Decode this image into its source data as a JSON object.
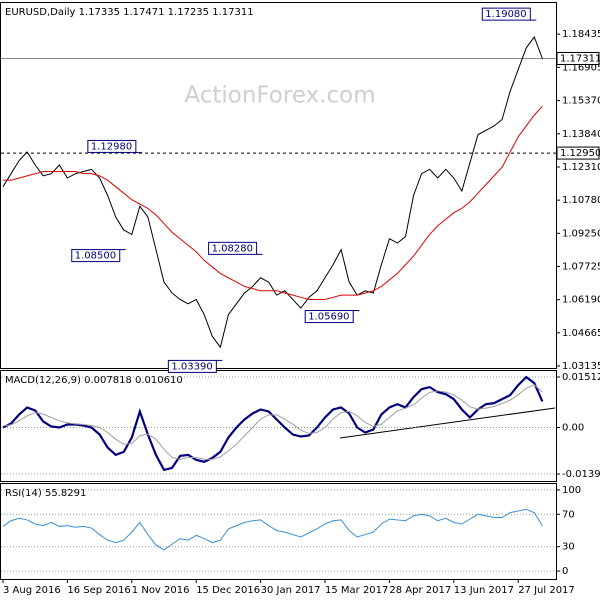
{
  "chart_data": [
    {
      "type": "line",
      "title": "EURUSD,Daily 1.17335 1.17471 1.17235 1.17311",
      "watermark": "ActionForex.com",
      "categories": [
        "3 Aug 2016",
        null,
        null,
        null,
        null,
        null,
        null,
        null,
        "16 Sep 2016",
        null,
        null,
        null,
        null,
        null,
        null,
        null,
        "1 Nov 2016",
        null,
        null,
        null,
        null,
        null,
        null,
        null,
        "15 Dec 2016",
        null,
        null,
        null,
        null,
        null,
        null,
        null,
        "30 Jan 2017",
        null,
        null,
        null,
        null,
        null,
        null,
        null,
        "15 Mar 2017",
        null,
        null,
        null,
        null,
        null,
        null,
        null,
        "28 Apr 2017",
        null,
        null,
        null,
        null,
        null,
        null,
        null,
        "13 Jun 2017",
        null,
        null,
        null,
        null,
        null,
        null,
        null,
        "27 Jul 2017",
        null,
        null,
        null
      ],
      "series": [
        {
          "color": "#000000",
          "values": [
            1.114,
            1.12,
            1.126,
            1.13,
            1.124,
            1.119,
            1.12,
            1.124,
            1.118,
            1.12,
            1.121,
            1.122,
            1.118,
            1.11,
            1.1,
            1.094,
            1.092,
            1.105,
            1.1,
            1.085,
            1.07,
            1.065,
            1.062,
            1.06,
            1.062,
            1.055,
            1.045,
            1.04,
            1.055,
            1.06,
            1.065,
            1.068,
            1.072,
            1.07,
            1.064,
            1.066,
            1.062,
            1.058,
            1.063,
            1.066,
            1.072,
            1.078,
            1.085,
            1.07,
            1.064,
            1.066,
            1.065,
            1.078,
            1.09,
            1.088,
            1.091,
            1.11,
            1.12,
            1.122,
            1.118,
            1.122,
            1.118,
            1.112,
            1.125,
            1.138,
            1.14,
            1.142,
            1.145,
            1.158,
            1.168,
            1.178,
            1.183,
            1.17311
          ]
        },
        {
          "color": "#e00000",
          "values": [
            1.117,
            1.117,
            1.118,
            1.119,
            1.12,
            1.121,
            1.121,
            1.121,
            1.121,
            1.121,
            1.12,
            1.12,
            1.119,
            1.117,
            1.114,
            1.111,
            1.108,
            1.106,
            1.104,
            1.101,
            1.097,
            1.093,
            1.09,
            1.087,
            1.084,
            1.08,
            1.077,
            1.074,
            1.072,
            1.07,
            1.068,
            1.067,
            1.066,
            1.066,
            1.066,
            1.065,
            1.064,
            1.063,
            1.062,
            1.062,
            1.062,
            1.063,
            1.064,
            1.064,
            1.064,
            1.065,
            1.066,
            1.068,
            1.071,
            1.074,
            1.078,
            1.082,
            1.087,
            1.092,
            1.096,
            1.099,
            1.102,
            1.104,
            1.107,
            1.111,
            1.115,
            1.119,
            1.123,
            1.13,
            1.137,
            1.142,
            1.147,
            1.151
          ]
        }
      ],
      "ylim": [
        1.0304,
        1.1987
      ],
      "yticks": [
        1.18435,
        1.16905,
        {
          "value": 1.1537,
          "label": "1.15370"
        },
        {
          "value": 1.1384,
          "label": "1.13840"
        },
        {
          "value": 1.1231,
          "label": "1.12310"
        },
        {
          "value": 1.1078,
          "label": "1.10780"
        },
        {
          "value": 1.0925,
          "label": "1.09250"
        },
        1.07725,
        {
          "value": 1.0619,
          "label": "1.06190"
        },
        1.04665,
        1.03135
      ],
      "annotations": [
        {
          "index": 66,
          "value": 1.1908,
          "label": "1.19080"
        },
        {
          "index": 17,
          "value": 1.1298,
          "label": "1.12980"
        },
        {
          "index": 15,
          "value": 1.085,
          "label": "1.08500"
        },
        {
          "index": 32,
          "value": 1.0828,
          "label": "1.08280"
        },
        {
          "index": 44,
          "value": 1.0569,
          "label": "1.05690"
        },
        {
          "index": 27,
          "value": 1.0339,
          "label": "1.03390"
        }
      ],
      "levels": [
        {
          "value": 1.1295,
          "label": "1.12950",
          "style": "dashed"
        },
        {
          "value": 1.17311,
          "label": "1.17311",
          "style": "solid"
        }
      ]
    },
    {
      "type": "line",
      "title": "MACD(12,26,9) 0.007818 0.010610",
      "series": [
        {
          "color": "#000080",
          "values": [
            0,
            0.0012,
            0.0039,
            0.006,
            0.0051,
            0.0018,
            0.0003,
            0,
            0.0009,
            0.0009,
            0.0006,
            0,
            -0.0021,
            -0.006,
            -0.0082,
            -0.0073,
            -0.003,
            0.0048,
            -0.0021,
            -0.0082,
            -0.0127,
            -0.0121,
            -0.0085,
            -0.0082,
            -0.0097,
            -0.0103,
            -0.0091,
            -0.0073,
            -0.003,
            0,
            0.0024,
            0.0042,
            0.0054,
            0.0048,
            0.0024,
            0,
            -0.0021,
            -0.0027,
            -0.0024,
            0,
            0.003,
            0.0054,
            0.006,
            0.0042,
            0,
            -0.0015,
            -0.0006,
            0.0039,
            0.006,
            0.007,
            0.006,
            0.0091,
            0.0115,
            0.0121,
            0.0106,
            0.01,
            0.0085,
            0.0054,
            0.003,
            0.0054,
            0.007,
            0.0073,
            0.0085,
            0.0097,
            0.0127,
            0.0151,
            0.0133,
            0.007818
          ]
        },
        {
          "color": "#a0a0a0",
          "values": [
            0.0005,
            0.0008,
            0.002,
            0.0035,
            0.0045,
            0.004,
            0.003,
            0.002,
            0.0014,
            0.0011,
            0.0009,
            0.0006,
            0,
            -0.0015,
            -0.0035,
            -0.005,
            -0.0048,
            -0.0025,
            -0.002,
            -0.0035,
            -0.0065,
            -0.009,
            -0.0095,
            -0.009,
            -0.009,
            -0.0095,
            -0.0095,
            -0.0088,
            -0.007,
            -0.005,
            -0.0025,
            0,
            0.0025,
            0.0038,
            0.0038,
            0.0025,
            0.001,
            -0.0008,
            -0.0018,
            -0.0015,
            0,
            0.0025,
            0.0045,
            0.0048,
            0.0035,
            0.0015,
            0.0003,
            0.001,
            0.003,
            0.005,
            0.0058,
            0.0068,
            0.0088,
            0.0105,
            0.011,
            0.0106,
            0.0098,
            0.0082,
            0.0062,
            0.0055,
            0.0058,
            0.0063,
            0.0072,
            0.0082,
            0.0098,
            0.0118,
            0.0128,
            0.01061
          ]
        }
      ],
      "ylim": [
        -0.01603,
        0.01693
      ],
      "yticks": [
        0.01512,
        {
          "value": 0,
          "label": "0.00"
        },
        -0.013938
      ],
      "grid": true
    },
    {
      "type": "line",
      "title": "RSI(14) 55.8291",
      "series": [
        {
          "color": "#3a8fd0",
          "values": [
            55,
            62,
            65,
            63,
            58,
            56,
            60,
            55,
            56,
            54,
            55,
            53,
            45,
            38,
            35,
            38,
            48,
            60,
            45,
            32,
            26,
            33,
            40,
            38,
            44,
            40,
            35,
            38,
            52,
            56,
            60,
            62,
            63,
            56,
            50,
            48,
            45,
            42,
            47,
            52,
            58,
            62,
            63,
            50,
            42,
            45,
            48,
            58,
            64,
            63,
            62,
            68,
            70,
            68,
            62,
            65,
            60,
            58,
            64,
            70,
            68,
            66,
            66,
            72,
            74,
            76,
            72,
            55.8291
          ]
        }
      ],
      "ylim": [
        -9.8,
        107.3
      ],
      "yticks": [
        100,
        70,
        30,
        0
      ],
      "grid": true
    }
  ]
}
